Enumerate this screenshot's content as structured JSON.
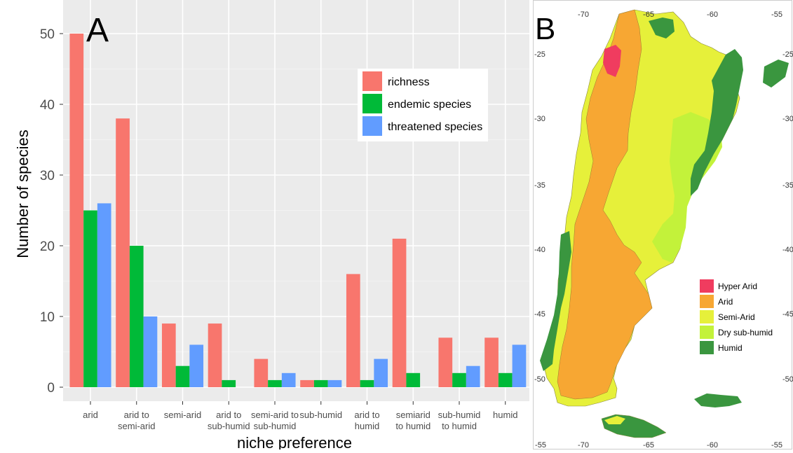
{
  "chart_data": [
    {
      "type": "bar",
      "panel_label": "A",
      "xlabel": "niche preference",
      "ylabel": "Number of species",
      "ylim": [
        0,
        52
      ],
      "yticks": [
        0,
        10,
        20,
        30,
        40,
        50
      ],
      "grid": true,
      "legend_position": "top-right",
      "categories": [
        [
          "arid"
        ],
        [
          "arid to",
          "semi-arid"
        ],
        [
          "semi-arid"
        ],
        [
          "arid to",
          "sub-humid"
        ],
        [
          "semi-arid to",
          "sub-humid"
        ],
        [
          "sub-humid"
        ],
        [
          "arid to",
          "humid"
        ],
        [
          "semiarid",
          "to humid"
        ],
        [
          "sub-humid",
          "to humid"
        ],
        [
          "humid"
        ]
      ],
      "series": [
        {
          "name": "richness",
          "color": "#f8766d",
          "values": [
            50,
            38,
            9,
            9,
            4,
            1,
            16,
            21,
            7,
            7
          ]
        },
        {
          "name": "endemic species",
          "color": "#00ba38",
          "values": [
            25,
            20,
            3,
            1,
            1,
            1,
            1,
            2,
            2,
            2
          ]
        },
        {
          "name": "threatened species",
          "color": "#619cff",
          "values": [
            26,
            10,
            6,
            0,
            2,
            1,
            4,
            0,
            3,
            6
          ]
        }
      ]
    },
    {
      "type": "map",
      "panel_label": "B",
      "lon_ticks_top": [
        "-70",
        "-65",
        "-60",
        "-55"
      ],
      "lon_ticks_bottom": [
        "-55",
        "-70",
        "-65",
        "-60",
        "-55"
      ],
      "lat_ticks_left": [
        "-25",
        "-30",
        "-35",
        "-40",
        "-45",
        "-50",
        "-55"
      ],
      "lat_ticks_right": [
        "-25",
        "-30",
        "-35",
        "-40",
        "-45",
        "-50"
      ],
      "legend": [
        {
          "label": "Hyper Arid",
          "color": "#f03c5f"
        },
        {
          "label": "Arid",
          "color": "#f7a733"
        },
        {
          "label": "Semi-Arid",
          "color": "#e6f03a"
        },
        {
          "label": "Dry sub-humid",
          "color": "#c3f23a"
        },
        {
          "label": "Humid",
          "color": "#3a963f"
        }
      ]
    }
  ]
}
